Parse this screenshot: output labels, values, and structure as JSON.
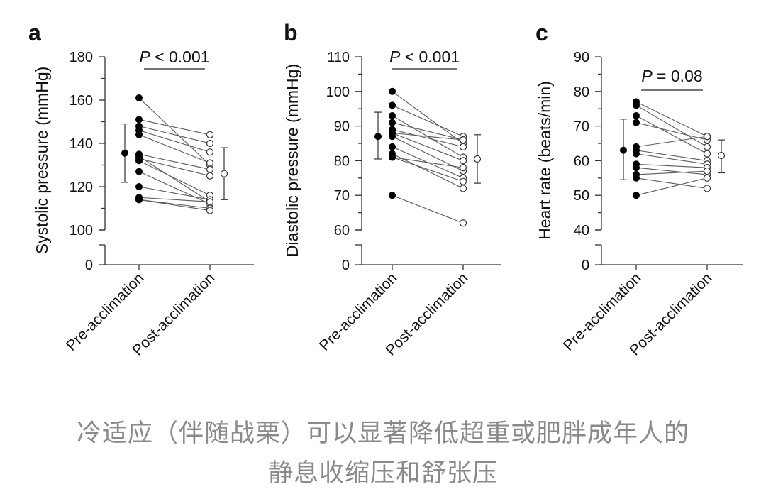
{
  "chart_data": [
    {
      "panel_label": "a",
      "type": "scatter",
      "subtype": "paired-dot-plot",
      "ylabel": "Systolic pressure (mmHg)",
      "categories": [
        "Pre-acclimation",
        "Post-acclimation"
      ],
      "y_ticks": [
        "180",
        "160",
        "140",
        "120",
        "100",
        "0"
      ],
      "ylim": [
        100,
        180
      ],
      "axis_break": true,
      "significance": {
        "p_italic": "P",
        "p_text": " < 0.001"
      },
      "pairs": [
        [
          161,
          130
        ],
        [
          151,
          144
        ],
        [
          148,
          140
        ],
        [
          146,
          136
        ],
        [
          144,
          131
        ],
        [
          135,
          128
        ],
        [
          134,
          113
        ],
        [
          133,
          125
        ],
        [
          132,
          116
        ],
        [
          127,
          112
        ],
        [
          120,
          114
        ],
        [
          115,
          113
        ],
        [
          114,
          110
        ],
        [
          114,
          109
        ]
      ],
      "pre_summary": {
        "mean": 135.5,
        "lower": 122,
        "upper": 149
      },
      "post_summary": {
        "mean": 126,
        "lower": 114,
        "upper": 138
      }
    },
    {
      "panel_label": "b",
      "type": "scatter",
      "subtype": "paired-dot-plot",
      "ylabel": "Diastolic pressure (mmHg)",
      "categories": [
        "Pre-acclimation",
        "Post-acclimation"
      ],
      "y_ticks": [
        "110",
        "100",
        "90",
        "80",
        "70",
        "60",
        "0"
      ],
      "ylim": [
        60,
        110
      ],
      "axis_break": true,
      "significance": {
        "p_italic": "P",
        "p_text": " < 0.001"
      },
      "pairs": [
        [
          100,
          85
        ],
        [
          96,
          87
        ],
        [
          93,
          81
        ],
        [
          91,
          86
        ],
        [
          89,
          84
        ],
        [
          88,
          86
        ],
        [
          88,
          80
        ],
        [
          87,
          77
        ],
        [
          84,
          75
        ],
        [
          82,
          72
        ],
        [
          81,
          74
        ],
        [
          81,
          78
        ],
        [
          70,
          62
        ]
      ],
      "pre_summary": {
        "mean": 87,
        "lower": 80.5,
        "upper": 94
      },
      "post_summary": {
        "mean": 80.5,
        "lower": 73.5,
        "upper": 87.5
      }
    },
    {
      "panel_label": "c",
      "type": "scatter",
      "subtype": "paired-dot-plot",
      "ylabel": "Heart rate (beats/min)",
      "categories": [
        "Pre-acclimation",
        "Post-acclimation"
      ],
      "y_ticks": [
        "90",
        "80",
        "70",
        "60",
        "50",
        "40",
        "0"
      ],
      "ylim": [
        40,
        90
      ],
      "axis_break": true,
      "significance": {
        "p_italic": "P",
        "p_text": " = 0.08"
      },
      "pairs": [
        [
          77,
          67
        ],
        [
          76,
          64
        ],
        [
          73,
          62
        ],
        [
          71,
          66
        ],
        [
          64,
          67
        ],
        [
          63,
          60
        ],
        [
          62,
          59
        ],
        [
          59,
          58
        ],
        [
          58,
          56
        ],
        [
          56,
          57
        ],
        [
          55,
          52
        ],
        [
          50,
          55
        ]
      ],
      "pre_summary": {
        "mean": 63,
        "lower": 54.5,
        "upper": 72
      },
      "post_summary": {
        "mean": 61.5,
        "lower": 56.5,
        "upper": 66
      }
    }
  ],
  "caption": {
    "line1": "冷适应（伴随战栗）可以显著降低超重或肥胖成年人的",
    "line2": "静息收缩压和舒张压"
  }
}
